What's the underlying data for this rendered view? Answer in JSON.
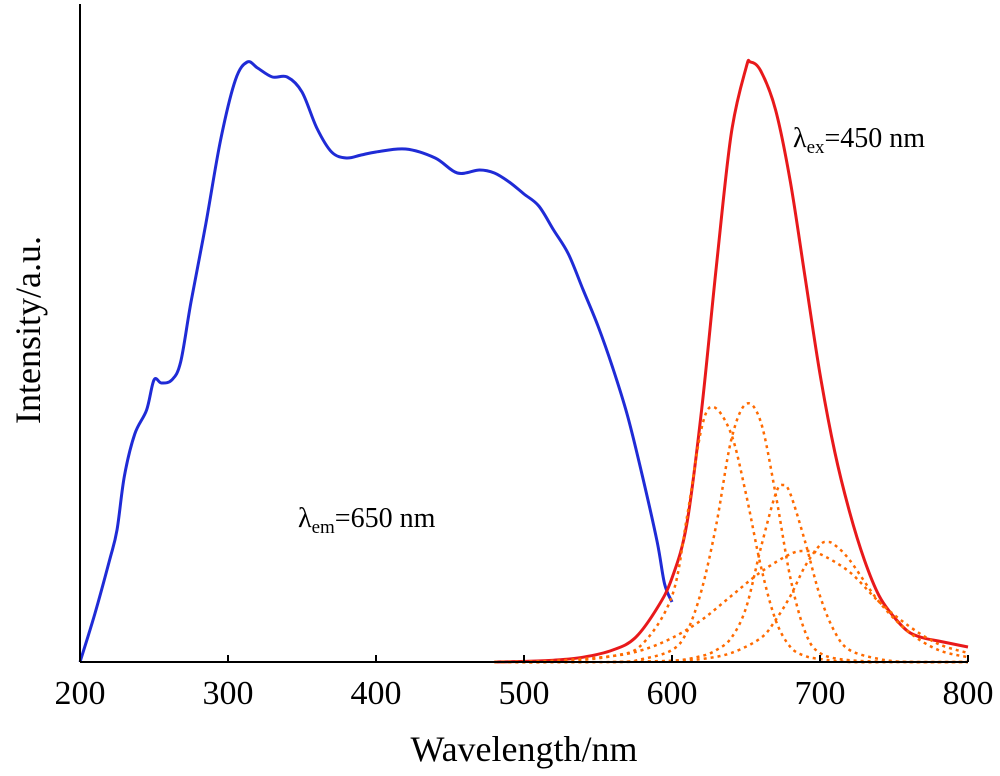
{
  "chart_data": {
    "type": "line",
    "xlabel": "Wavelength/nm",
    "ylabel": "Intensity/a.u.",
    "xlim": [
      200,
      800
    ],
    "ylim": [
      0,
      1
    ],
    "x_ticks": [
      "200",
      "300",
      "400",
      "500",
      "600",
      "700",
      "800"
    ],
    "y_ticks_visible": false,
    "grid": false,
    "legend": "none",
    "annotations": [
      {
        "id": "ex",
        "symbol": "λ",
        "sub": "ex",
        "rest": "=450 nm",
        "at": [
          780,
          0.87
        ]
      },
      {
        "id": "em",
        "symbol": "λ",
        "sub": "em",
        "rest": "=650 nm",
        "at": [
          350,
          0.22
        ]
      }
    ],
    "series": [
      {
        "id": "excitation",
        "color": "#1f2bd6",
        "style": "solid",
        "x": [
          200,
          210,
          220,
          225,
          230,
          237,
          245,
          250,
          255,
          262,
          268,
          275,
          285,
          295,
          305,
          313,
          320,
          330,
          340,
          350,
          360,
          370,
          380,
          390,
          400,
          420,
          440,
          455,
          470,
          480,
          490,
          500,
          510,
          520,
          530,
          540,
          550,
          560,
          570,
          580,
          590,
          595,
          600
        ],
        "y": [
          0.0,
          0.08,
          0.17,
          0.22,
          0.31,
          0.38,
          0.42,
          0.47,
          0.465,
          0.47,
          0.5,
          0.6,
          0.73,
          0.87,
          0.97,
          1.0,
          0.99,
          0.975,
          0.975,
          0.95,
          0.89,
          0.85,
          0.84,
          0.845,
          0.85,
          0.855,
          0.84,
          0.815,
          0.82,
          0.815,
          0.8,
          0.78,
          0.76,
          0.72,
          0.68,
          0.62,
          0.56,
          0.49,
          0.41,
          0.31,
          0.2,
          0.13,
          0.1
        ]
      },
      {
        "id": "emission",
        "color": "#e8191b",
        "style": "solid",
        "x": [
          480,
          500,
          520,
          540,
          560,
          575,
          590,
          600,
          610,
          620,
          630,
          640,
          650,
          653,
          660,
          670,
          680,
          690,
          700,
          710,
          720,
          730,
          740,
          750,
          760,
          770,
          780,
          790,
          800
        ],
        "y": [
          0.0,
          0.001,
          0.003,
          0.008,
          0.02,
          0.04,
          0.09,
          0.14,
          0.23,
          0.42,
          0.66,
          0.88,
          0.99,
          1.0,
          0.985,
          0.92,
          0.8,
          0.64,
          0.48,
          0.35,
          0.25,
          0.17,
          0.11,
          0.075,
          0.05,
          0.04,
          0.035,
          0.03,
          0.025
        ]
      },
      {
        "id": "gauss-1",
        "color": "#ff6a00",
        "style": "dotted",
        "x": [
          480,
          520,
          560,
          580,
          600,
          610,
          620,
          628,
          640,
          650,
          660,
          670,
          680,
          690,
          700,
          720,
          760,
          800
        ],
        "y": [
          0.0,
          0.0,
          0.01,
          0.03,
          0.11,
          0.24,
          0.39,
          0.425,
          0.38,
          0.28,
          0.16,
          0.07,
          0.025,
          0.01,
          0.005,
          0.0,
          0.0,
          0.0
        ]
      },
      {
        "id": "gauss-2",
        "color": "#ff6a00",
        "style": "dotted",
        "x": [
          480,
          560,
          580,
          600,
          610,
          620,
          630,
          640,
          650,
          660,
          670,
          680,
          690,
          700,
          720,
          760,
          800
        ],
        "y": [
          0.0,
          0.0,
          0.005,
          0.02,
          0.05,
          0.12,
          0.23,
          0.37,
          0.43,
          0.4,
          0.28,
          0.14,
          0.05,
          0.015,
          0.003,
          0.0,
          0.0
        ]
      },
      {
        "id": "gauss-3",
        "color": "#ff6a00",
        "style": "dotted",
        "x": [
          560,
          600,
          620,
          630,
          640,
          650,
          660,
          670,
          675,
          680,
          690,
          700,
          710,
          720,
          740,
          760,
          800
        ],
        "y": [
          0.0,
          0.002,
          0.01,
          0.02,
          0.04,
          0.09,
          0.19,
          0.28,
          0.295,
          0.28,
          0.2,
          0.11,
          0.05,
          0.02,
          0.005,
          0.0,
          0.0
        ]
      },
      {
        "id": "gauss-4",
        "color": "#ff6a00",
        "style": "dotted",
        "x": [
          480,
          520,
          560,
          580,
          600,
          620,
          640,
          660,
          680,
          690,
          700,
          720,
          740,
          760,
          780,
          800
        ],
        "y": [
          0.0,
          0.002,
          0.01,
          0.02,
          0.04,
          0.07,
          0.11,
          0.15,
          0.18,
          0.185,
          0.18,
          0.15,
          0.1,
          0.06,
          0.03,
          0.015
        ]
      },
      {
        "id": "gauss-5",
        "color": "#ff6a00",
        "style": "dotted",
        "x": [
          560,
          600,
          620,
          640,
          660,
          670,
          680,
          690,
          700,
          705,
          710,
          720,
          740,
          760,
          780,
          800
        ],
        "y": [
          0.0,
          0.002,
          0.005,
          0.015,
          0.04,
          0.07,
          0.11,
          0.16,
          0.195,
          0.2,
          0.195,
          0.17,
          0.1,
          0.05,
          0.02,
          0.008
        ]
      }
    ]
  }
}
